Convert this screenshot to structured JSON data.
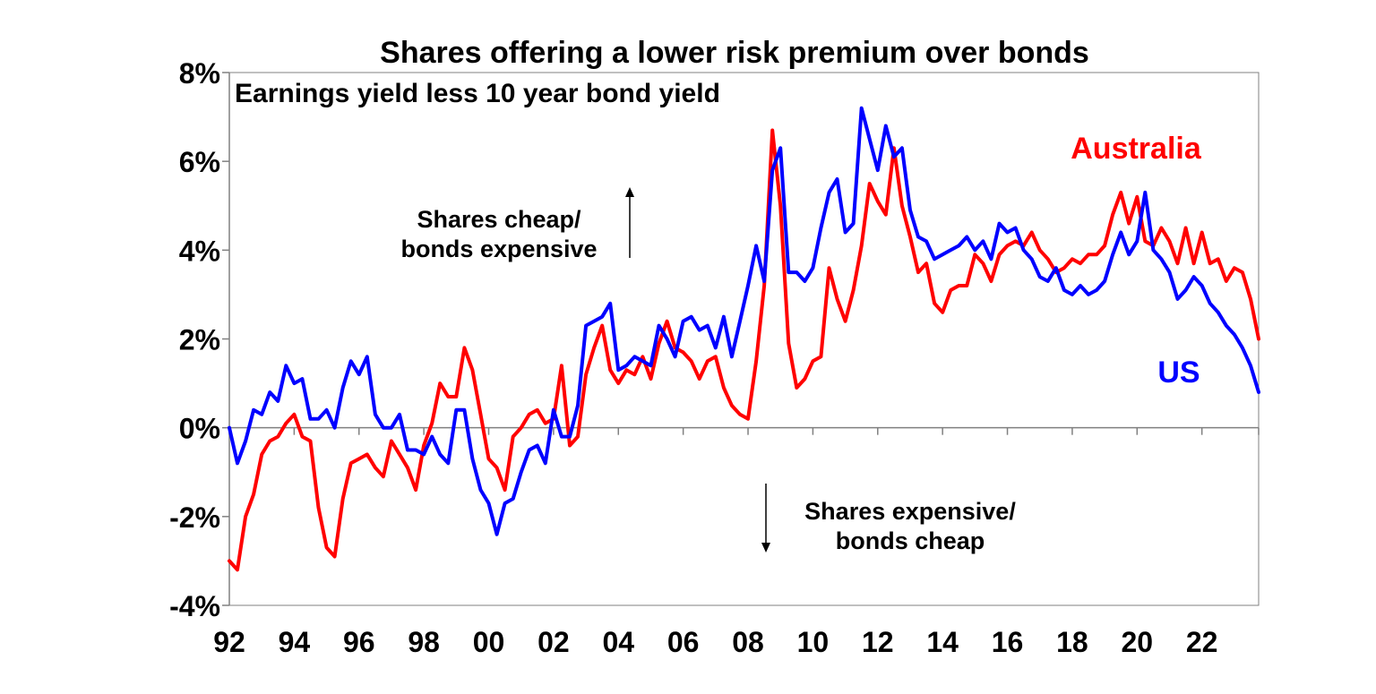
{
  "chart_data": {
    "type": "line",
    "title": "Shares offering a lower risk premium over bonds",
    "subtitle": "Earnings yield less 10 year bond yield",
    "xlabel": "",
    "ylabel": "",
    "ylim": [
      -4,
      8
    ],
    "xlim": [
      1992.0,
      2023.75
    ],
    "y_ticks": [
      "-4%",
      "-2%",
      "0%",
      "2%",
      "4%",
      "6%",
      "8%"
    ],
    "y_tick_values": [
      -4,
      -2,
      0,
      2,
      4,
      6,
      8
    ],
    "x_ticks": [
      "92",
      "94",
      "96",
      "98",
      "00",
      "02",
      "04",
      "06",
      "08",
      "10",
      "12",
      "14",
      "16",
      "18",
      "20",
      "22"
    ],
    "x_tick_values": [
      1992,
      1994,
      1996,
      1998,
      2000,
      2002,
      2004,
      2006,
      2008,
      2010,
      2012,
      2014,
      2016,
      2018,
      2020,
      2022
    ],
    "annotations": {
      "up_line1": "Shares cheap/",
      "up_line2": "bonds expensive",
      "down_line1": "Shares expensive/",
      "down_line2": "bonds cheap"
    },
    "series": [
      {
        "name": "Australia",
        "label": "Australia",
        "color": "#ff0000",
        "x": [
          1992.0,
          1992.25,
          1992.5,
          1992.75,
          1993.0,
          1993.25,
          1993.5,
          1993.75,
          1994.0,
          1994.25,
          1994.5,
          1994.75,
          1995.0,
          1995.25,
          1995.5,
          1995.75,
          1996.0,
          1996.25,
          1996.5,
          1996.75,
          1997.0,
          1997.25,
          1997.5,
          1997.75,
          1998.0,
          1998.25,
          1998.5,
          1998.75,
          1999.0,
          1999.25,
          1999.5,
          1999.75,
          2000.0,
          2000.25,
          2000.5,
          2000.75,
          2001.0,
          2001.25,
          2001.5,
          2001.75,
          2002.0,
          2002.25,
          2002.5,
          2002.75,
          2003.0,
          2003.25,
          2003.5,
          2003.75,
          2004.0,
          2004.25,
          2004.5,
          2004.75,
          2005.0,
          2005.25,
          2005.5,
          2005.75,
          2006.0,
          2006.25,
          2006.5,
          2006.75,
          2007.0,
          2007.25,
          2007.5,
          2007.75,
          2008.0,
          2008.25,
          2008.5,
          2008.75,
          2009.0,
          2009.25,
          2009.5,
          2009.75,
          2010.0,
          2010.25,
          2010.5,
          2010.75,
          2011.0,
          2011.25,
          2011.5,
          2011.75,
          2012.0,
          2012.25,
          2012.5,
          2012.75,
          2013.0,
          2013.25,
          2013.5,
          2013.75,
          2014.0,
          2014.25,
          2014.5,
          2014.75,
          2015.0,
          2015.25,
          2015.5,
          2015.75,
          2016.0,
          2016.25,
          2016.5,
          2016.75,
          2017.0,
          2017.25,
          2017.5,
          2017.75,
          2018.0,
          2018.25,
          2018.5,
          2018.75,
          2019.0,
          2019.25,
          2019.5,
          2019.75,
          2020.0,
          2020.25,
          2020.5,
          2020.75,
          2021.0,
          2021.25,
          2021.5,
          2021.75,
          2022.0,
          2022.25,
          2022.5,
          2022.75,
          2023.0,
          2023.25,
          2023.5,
          2023.75
        ],
        "values": [
          -3.0,
          -3.2,
          -2.0,
          -1.5,
          -0.6,
          -0.3,
          -0.2,
          0.1,
          0.3,
          -0.2,
          -0.3,
          -1.8,
          -2.7,
          -2.9,
          -1.6,
          -0.8,
          -0.7,
          -0.6,
          -0.9,
          -1.1,
          -0.3,
          -0.6,
          -0.9,
          -1.4,
          -0.4,
          0.1,
          1.0,
          0.7,
          0.7,
          1.8,
          1.3,
          0.3,
          -0.7,
          -0.9,
          -1.4,
          -0.2,
          0.0,
          0.3,
          0.4,
          0.1,
          0.2,
          1.4,
          -0.4,
          -0.2,
          1.2,
          1.8,
          2.3,
          1.3,
          1.0,
          1.3,
          1.2,
          1.6,
          1.1,
          1.9,
          2.4,
          1.8,
          1.7,
          1.5,
          1.1,
          1.5,
          1.6,
          0.9,
          0.5,
          0.3,
          0.2,
          1.5,
          3.2,
          6.7,
          5.0,
          1.9,
          0.9,
          1.1,
          1.5,
          1.6,
          3.6,
          2.9,
          2.4,
          3.1,
          4.1,
          5.5,
          5.1,
          4.8,
          6.3,
          5.0,
          4.3,
          3.5,
          3.7,
          2.8,
          2.6,
          3.1,
          3.2,
          3.2,
          3.9,
          3.7,
          3.3,
          3.9,
          4.1,
          4.2,
          4.1,
          4.4,
          4.0,
          3.8,
          3.5,
          3.6,
          3.8,
          3.7,
          3.9,
          3.9,
          4.1,
          4.8,
          5.3,
          4.6,
          5.2,
          4.2,
          4.1,
          4.5,
          4.2,
          3.7,
          4.5,
          3.7,
          4.4,
          3.7,
          3.8,
          3.3,
          3.6,
          3.5,
          2.9,
          2.0
        ]
      },
      {
        "name": "US",
        "label": "US",
        "color": "#0000ff",
        "x": [
          1992.0,
          1992.25,
          1992.5,
          1992.75,
          1993.0,
          1993.25,
          1993.5,
          1993.75,
          1994.0,
          1994.25,
          1994.5,
          1994.75,
          1995.0,
          1995.25,
          1995.5,
          1995.75,
          1996.0,
          1996.25,
          1996.5,
          1996.75,
          1997.0,
          1997.25,
          1997.5,
          1997.75,
          1998.0,
          1998.25,
          1998.5,
          1998.75,
          1999.0,
          1999.25,
          1999.5,
          1999.75,
          2000.0,
          2000.25,
          2000.5,
          2000.75,
          2001.0,
          2001.25,
          2001.5,
          2001.75,
          2002.0,
          2002.25,
          2002.5,
          2002.75,
          2003.0,
          2003.25,
          2003.5,
          2003.75,
          2004.0,
          2004.25,
          2004.5,
          2004.75,
          2005.0,
          2005.25,
          2005.5,
          2005.75,
          2006.0,
          2006.25,
          2006.5,
          2006.75,
          2007.0,
          2007.25,
          2007.5,
          2007.75,
          2008.0,
          2008.25,
          2008.5,
          2008.75,
          2009.0,
          2009.25,
          2009.5,
          2009.75,
          2010.0,
          2010.25,
          2010.5,
          2010.75,
          2011.0,
          2011.25,
          2011.5,
          2011.75,
          2012.0,
          2012.25,
          2012.5,
          2012.75,
          2013.0,
          2013.25,
          2013.5,
          2013.75,
          2014.0,
          2014.25,
          2014.5,
          2014.75,
          2015.0,
          2015.25,
          2015.5,
          2015.75,
          2016.0,
          2016.25,
          2016.5,
          2016.75,
          2017.0,
          2017.25,
          2017.5,
          2017.75,
          2018.0,
          2018.25,
          2018.5,
          2018.75,
          2019.0,
          2019.25,
          2019.5,
          2019.75,
          2020.0,
          2020.25,
          2020.5,
          2020.75,
          2021.0,
          2021.25,
          2021.5,
          2021.75,
          2022.0,
          2022.25,
          2022.5,
          2022.75,
          2023.0,
          2023.25,
          2023.5,
          2023.75
        ],
        "values": [
          0.0,
          -0.8,
          -0.3,
          0.4,
          0.3,
          0.8,
          0.6,
          1.4,
          1.0,
          1.1,
          0.2,
          0.2,
          0.4,
          0.0,
          0.9,
          1.5,
          1.2,
          1.6,
          0.3,
          0.0,
          0.0,
          0.3,
          -0.5,
          -0.5,
          -0.6,
          -0.2,
          -0.6,
          -0.8,
          0.4,
          0.4,
          -0.7,
          -1.4,
          -1.7,
          -2.4,
          -1.7,
          -1.6,
          -1.0,
          -0.5,
          -0.4,
          -0.8,
          0.4,
          -0.2,
          -0.2,
          0.5,
          2.3,
          2.4,
          2.5,
          2.8,
          1.3,
          1.4,
          1.6,
          1.5,
          1.4,
          2.3,
          2.0,
          1.6,
          2.4,
          2.5,
          2.2,
          2.3,
          1.8,
          2.5,
          1.6,
          2.4,
          3.2,
          4.1,
          3.3,
          5.8,
          6.3,
          3.5,
          3.5,
          3.3,
          3.6,
          4.5,
          5.3,
          5.6,
          4.4,
          4.6,
          7.2,
          6.5,
          5.8,
          6.8,
          6.1,
          6.3,
          4.9,
          4.3,
          4.2,
          3.8,
          3.9,
          4.0,
          4.1,
          4.3,
          4.0,
          4.2,
          3.8,
          4.6,
          4.4,
          4.5,
          4.0,
          3.8,
          3.4,
          3.3,
          3.6,
          3.1,
          3.0,
          3.2,
          3.0,
          3.1,
          3.3,
          3.9,
          4.4,
          3.9,
          4.2,
          5.3,
          4.0,
          3.8,
          3.5,
          2.9,
          3.1,
          3.4,
          3.2,
          2.8,
          2.6,
          2.3,
          2.1,
          1.8,
          1.4,
          0.8
        ]
      }
    ]
  }
}
